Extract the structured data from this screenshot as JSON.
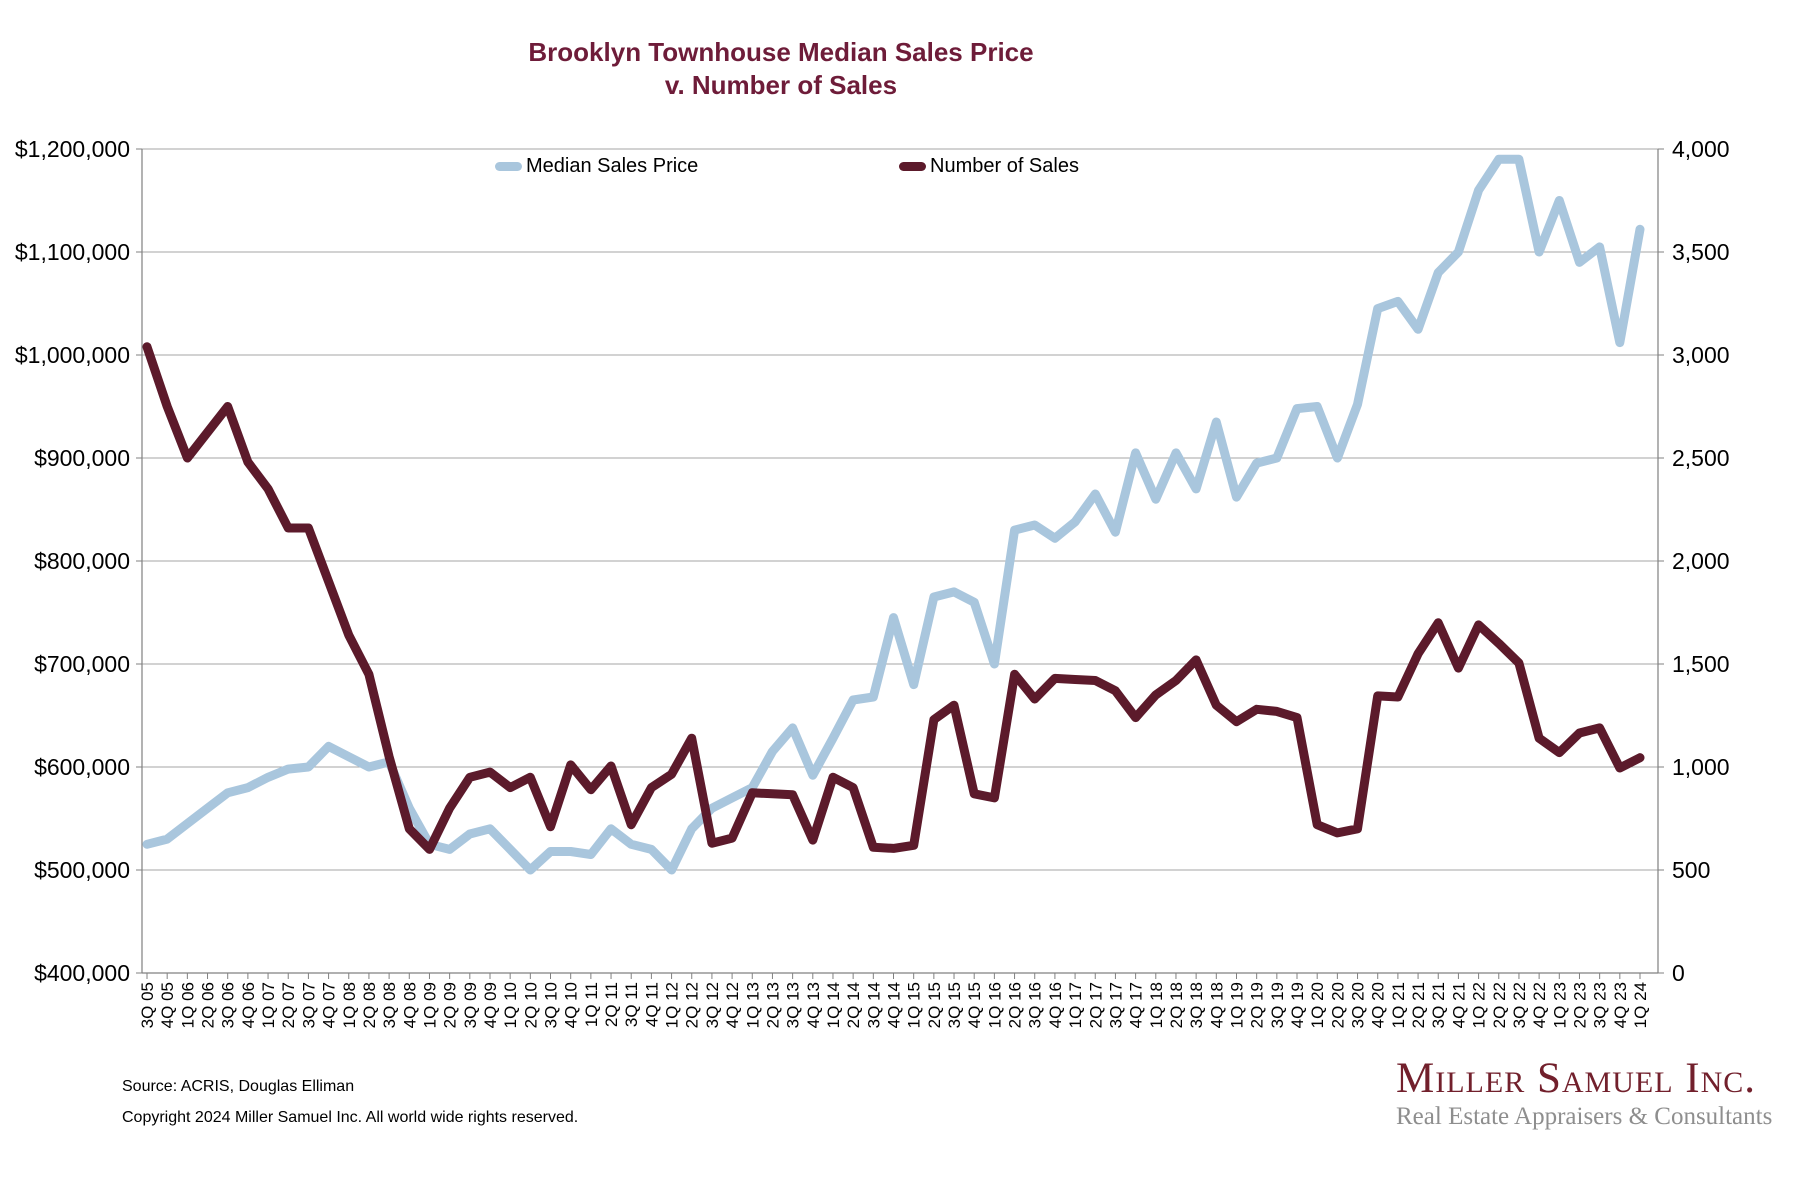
{
  "title": {
    "line1": "Brooklyn Townhouse Median Sales Price",
    "line2": "v. Number of Sales"
  },
  "legend": {
    "price_label": "Median Sales Price",
    "sales_label": "Number of Sales"
  },
  "colors": {
    "title_maroon": "#6e1c39",
    "price_line": "#a9c6dd",
    "sales_line": "#5c1a2b",
    "gridline": "#a6a6a6",
    "axis": "#808080",
    "logo_maroon": "#72202c",
    "logo_gray": "#8e8e8e"
  },
  "axes": {
    "left_ticks": [
      "$1,200,000",
      "$1,100,000",
      "$1,000,000",
      "$900,000",
      "$800,000",
      "$700,000",
      "$600,000",
      "$500,000",
      "$400,000"
    ],
    "right_ticks": [
      "4,000",
      "3,500",
      "3,000",
      "2,500",
      "2,000",
      "1,500",
      "1,000",
      "500",
      "0"
    ]
  },
  "chart_data": {
    "type": "line",
    "title": "Brooklyn Townhouse Median Sales Price v. Number of Sales",
    "grid": "horizontal",
    "legend_position": "top-inside",
    "categories": [
      "3Q 05",
      "4Q 05",
      "1Q 06",
      "2Q 06",
      "3Q 06",
      "4Q 06",
      "1Q 07",
      "2Q 07",
      "3Q 07",
      "4Q 07",
      "1Q 08",
      "2Q 08",
      "3Q 08",
      "4Q 08",
      "1Q 09",
      "2Q 09",
      "3Q 09",
      "4Q 09",
      "1Q 10",
      "2Q 10",
      "3Q 10",
      "4Q 10",
      "1Q 11",
      "2Q 11",
      "3Q 11",
      "4Q 11",
      "1Q 12",
      "2Q 12",
      "3Q 12",
      "4Q 12",
      "1Q 13",
      "2Q 13",
      "3Q 13",
      "4Q 13",
      "1Q 14",
      "2Q 14",
      "3Q 14",
      "4Q 14",
      "1Q 15",
      "2Q 15",
      "3Q 15",
      "4Q 15",
      "1Q 16",
      "2Q 16",
      "3Q 16",
      "4Q 16",
      "1Q 17",
      "2Q 17",
      "3Q 17",
      "4Q 17",
      "1Q 18",
      "2Q 18",
      "3Q 18",
      "4Q 18",
      "1Q 19",
      "2Q 19",
      "3Q 19",
      "4Q 19",
      "1Q 20",
      "2Q 20",
      "3Q 20",
      "4Q 20",
      "1Q 21",
      "2Q 21",
      "3Q 21",
      "4Q 21",
      "1Q 22",
      "2Q 22",
      "3Q 22",
      "4Q 22",
      "1Q 23",
      "2Q 23",
      "3Q 23",
      "4Q 23",
      "1Q 24"
    ],
    "left_axis": {
      "label": "Median Sales Price",
      "min": 400000,
      "max": 1200000,
      "tick_step": 100000
    },
    "right_axis": {
      "label": "Number of Sales",
      "min": 0,
      "max": 4000,
      "tick_step": 500
    },
    "series": [
      {
        "name": "Median Sales Price",
        "axis": "left",
        "color": "#a9c6dd",
        "values": [
          525000,
          530000,
          545000,
          560000,
          575000,
          580000,
          590000,
          598000,
          600000,
          620000,
          610000,
          600000,
          605000,
          560000,
          525000,
          520000,
          535000,
          540000,
          520000,
          500000,
          518000,
          518000,
          515000,
          540000,
          525000,
          520000,
          500000,
          540000,
          560000,
          570000,
          580000,
          615000,
          638000,
          592000,
          628000,
          665000,
          668000,
          745000,
          680000,
          765000,
          770000,
          760000,
          700000,
          830000,
          835000,
          822000,
          838000,
          865000,
          828000,
          905000,
          860000,
          905000,
          870000,
          935000,
          862000,
          895000,
          900000,
          948000,
          950000,
          900000,
          952000,
          1045000,
          1052000,
          1025000,
          1080000,
          1100000,
          1160000,
          1190000,
          1190000,
          1100000,
          1150000,
          1090000,
          1105000,
          1012000,
          1122000
        ]
      },
      {
        "name": "Number of Sales",
        "axis": "right",
        "color": "#5c1a2b",
        "values": [
          3040,
          2750,
          2500,
          2625,
          2750,
          2480,
          2350,
          2160,
          2160,
          1900,
          1640,
          1450,
          1050,
          700,
          600,
          800,
          950,
          975,
          900,
          950,
          710,
          1010,
          890,
          1005,
          720,
          900,
          965,
          1140,
          630,
          655,
          875,
          870,
          865,
          645,
          950,
          900,
          610,
          605,
          620,
          1230,
          1300,
          870,
          850,
          1450,
          1330,
          1430,
          1425,
          1420,
          1370,
          1240,
          1350,
          1420,
          1520,
          1300,
          1220,
          1280,
          1270,
          1240,
          720,
          680,
          700,
          1345,
          1340,
          1550,
          1700,
          1480,
          1690,
          1600,
          1505,
          1140,
          1070,
          1165,
          1190,
          995,
          1045
        ]
      }
    ]
  },
  "footer": {
    "source": "Source: ACRIS, Douglas Elliman",
    "copyright": "Copyright 2024 Miller Samuel Inc.  All world wide rights reserved."
  },
  "logo": {
    "name": "Miller Samuel Inc.",
    "tagline": "Real Estate Appraisers & Consultants"
  }
}
